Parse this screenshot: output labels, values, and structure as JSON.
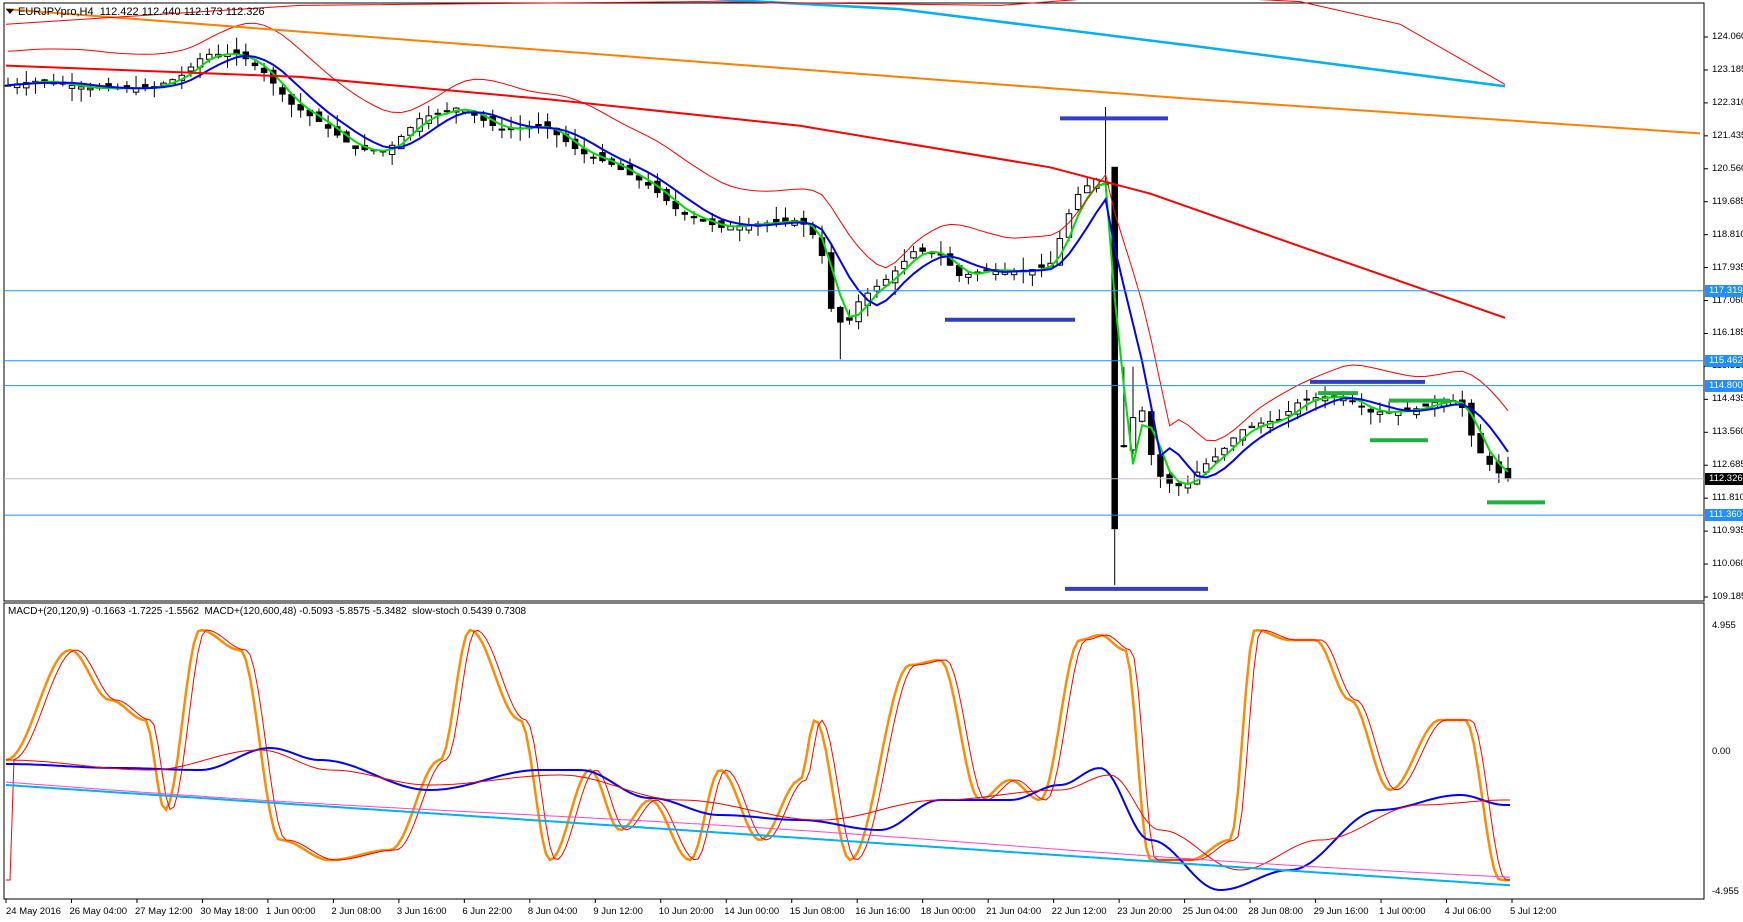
{
  "window": {
    "symbol_info": "EURJPYpro,H4  112.422 112.440 112.173 112.326",
    "indicator_info": "MACD+(20,120,9) -0.1663 -1.7225 -1.5562  MACD+(120,600,48) -0.5093 -5.8575 -5.3482  slow-stoch 0.5439 0.7308"
  },
  "price_axis": {
    "ticks": [
      "124.060",
      "123.185",
      "122.310",
      "121.435",
      "120.560",
      "119.685",
      "118.810",
      "117.935",
      "117.060",
      "116.185",
      "115.310",
      "114.435",
      "113.560",
      "112.685",
      "111.810",
      "110.935",
      "110.060",
      "109.185"
    ],
    "highlighted": [
      {
        "value": "117.319",
        "style": "blue"
      },
      {
        "value": "115.462",
        "style": "blue"
      },
      {
        "value": "114.800",
        "style": "blue"
      },
      {
        "value": "112.326",
        "style": "black"
      },
      {
        "value": "111.360",
        "style": "blue"
      }
    ]
  },
  "indicator_axis": {
    "ticks": [
      "4.955",
      "0.00",
      "-4.955"
    ]
  },
  "time_axis": {
    "labels": [
      "24 May 2016",
      "26 May 04:00",
      "27 May 12:00",
      "30 May 18:00",
      "1 Jun 00:00",
      "2 Jun 08:00",
      "3 Jun 16:00",
      "6 Jun 22:00",
      "8 Jun 04:00",
      "9 Jun 12:00",
      "10 Jun 20:00",
      "14 Jun 00:00",
      "15 Jun 08:00",
      "16 Jun 16:00",
      "18 Jun 00:00",
      "21 Jun 04:00",
      "22 Jun 12:00",
      "23 Jun 20:00",
      "25 Jun 04:00",
      "28 Jun 08:00",
      "29 Jun 16:00",
      "1 Jul 00:00",
      "4 Jul 06:00",
      "5 Jul 12:00"
    ]
  },
  "colors": {
    "up_candle": "#ffffff",
    "down_candle": "#000000",
    "ma_green": "#00dd00",
    "ma_blue": "#0000ff",
    "ma_red": "#ff0000",
    "ma_orange": "#ff8000",
    "ma_cyan": "#00b0f0",
    "envelope": "#ff0000",
    "hline": "#1e90ff",
    "stoch_orange": "#ff8c00",
    "macd_blue": "#0000ff",
    "macd_cyan": "#00b0f0",
    "macd_magenta": "#ff44cc"
  }
}
